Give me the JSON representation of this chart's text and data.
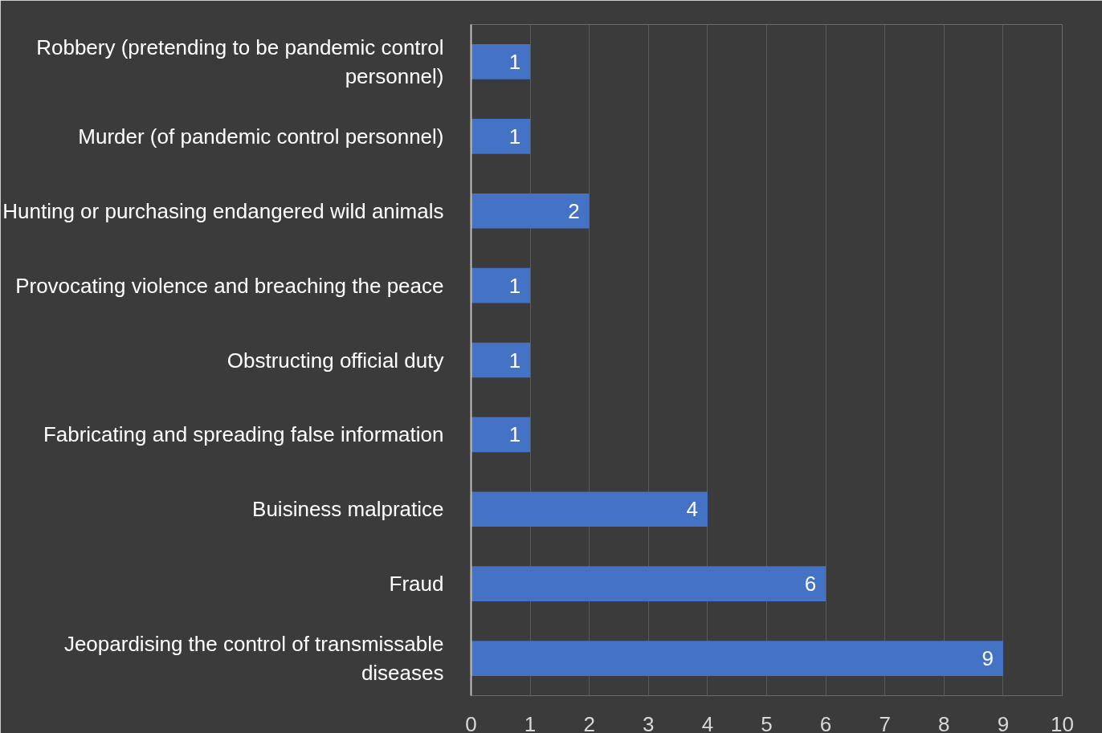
{
  "chart_data": {
    "type": "bar",
    "orientation": "horizontal",
    "categories": [
      "Robbery (pretending to be pandemic control personnel)",
      "Murder (of pandemic control personnel)",
      "Hunting or purchasing endangered wild animals",
      "Provocating violence and breaching the peace",
      "Obstructing official duty",
      "Fabricating and spreading false information",
      "Buisiness malpratice",
      "Fraud",
      "Jeopardising the control of transmissable diseases"
    ],
    "values": [
      1,
      1,
      2,
      1,
      1,
      1,
      4,
      6,
      9
    ],
    "color": "#4472c4",
    "xlim": [
      0,
      10
    ],
    "xticks": [
      0,
      1,
      2,
      3,
      4,
      5,
      6,
      7,
      8,
      9,
      10
    ],
    "grid": "x",
    "data_labels": true
  }
}
